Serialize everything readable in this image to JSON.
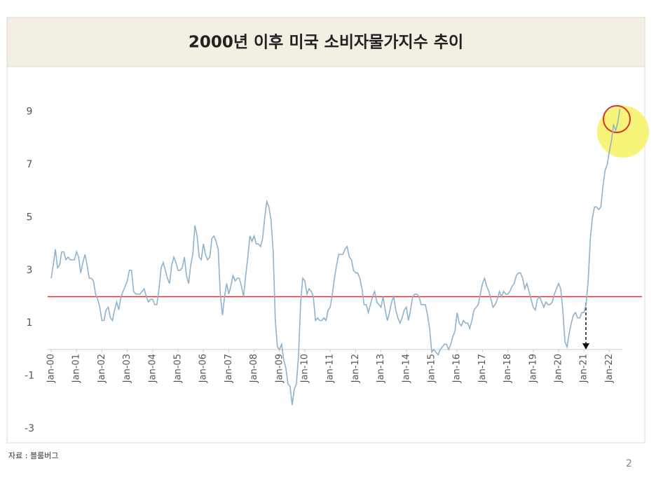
{
  "chart_data": {
    "type": "line",
    "title": "2000년 이후 미국 소비자물가지수 추이",
    "categories": [
      "Jan-00",
      null,
      null,
      null,
      null,
      null,
      null,
      null,
      null,
      null,
      null,
      null,
      "Jan-01",
      null,
      null,
      null,
      null,
      null,
      null,
      null,
      null,
      null,
      null,
      null,
      "Jan-02",
      null,
      null,
      null,
      null,
      null,
      null,
      null,
      null,
      null,
      null,
      null,
      "Jan-03",
      null,
      null,
      null,
      null,
      null,
      null,
      null,
      null,
      null,
      null,
      null,
      "Jan-04",
      null,
      null,
      null,
      null,
      null,
      null,
      null,
      null,
      null,
      null,
      null,
      "Jan-05",
      null,
      null,
      null,
      null,
      null,
      null,
      null,
      null,
      null,
      null,
      null,
      "Jan-06",
      null,
      null,
      null,
      null,
      null,
      null,
      null,
      null,
      null,
      null,
      null,
      "Jan-07",
      null,
      null,
      null,
      null,
      null,
      null,
      null,
      null,
      null,
      null,
      null,
      "Jan-08",
      null,
      null,
      null,
      null,
      null,
      null,
      null,
      null,
      null,
      null,
      null,
      "Jan-09",
      null,
      null,
      null,
      null,
      null,
      null,
      null,
      null,
      null,
      null,
      null,
      "Jan-10",
      null,
      null,
      null,
      null,
      null,
      null,
      null,
      null,
      null,
      null,
      null,
      "Jan-11",
      null,
      null,
      null,
      null,
      null,
      null,
      null,
      null,
      null,
      null,
      null,
      "Jan-12",
      null,
      null,
      null,
      null,
      null,
      null,
      null,
      null,
      null,
      null,
      null,
      "Jan-13",
      null,
      null,
      null,
      null,
      null,
      null,
      null,
      null,
      null,
      null,
      null,
      "Jan-14",
      null,
      null,
      null,
      null,
      null,
      null,
      null,
      null,
      null,
      null,
      null,
      "Jan-15",
      null,
      null,
      null,
      null,
      null,
      null,
      null,
      null,
      null,
      null,
      null,
      "Jan-16",
      null,
      null,
      null,
      null,
      null,
      null,
      null,
      null,
      null,
      null,
      null,
      "Jan-17",
      null,
      null,
      null,
      null,
      null,
      null,
      null,
      null,
      null,
      null,
      null,
      "Jan-18",
      null,
      null,
      null,
      null,
      null,
      null,
      null,
      null,
      null,
      null,
      null,
      "Jan-19",
      null,
      null,
      null,
      null,
      null,
      null,
      null,
      null,
      null,
      null,
      null,
      "Jan-20",
      null,
      null,
      null,
      null,
      null,
      null,
      null,
      null,
      null,
      null,
      null,
      "Jan-21",
      null,
      null,
      null,
      null,
      null,
      null,
      null,
      null,
      null,
      null,
      null,
      "Jan-22",
      null,
      null,
      null,
      null,
      null
    ],
    "values": [
      2.7,
      3.2,
      3.8,
      3.1,
      3.2,
      3.7,
      3.7,
      3.4,
      3.5,
      3.4,
      3.4,
      3.4,
      3.7,
      3.5,
      2.9,
      3.3,
      3.6,
      3.2,
      2.7,
      2.7,
      2.6,
      2.1,
      1.9,
      1.6,
      1.1,
      1.1,
      1.5,
      1.6,
      1.2,
      1.1,
      1.5,
      1.8,
      1.5,
      2.0,
      2.2,
      2.4,
      2.6,
      3.0,
      3.0,
      2.2,
      2.1,
      2.1,
      2.1,
      2.2,
      2.3,
      2.0,
      1.8,
      1.9,
      1.9,
      1.7,
      1.7,
      2.3,
      3.1,
      3.3,
      3.0,
      2.7,
      2.5,
      3.2,
      3.5,
      3.3,
      3.0,
      3.0,
      3.1,
      3.5,
      2.8,
      2.5,
      3.2,
      3.6,
      4.7,
      4.3,
      3.5,
      3.4,
      4.0,
      3.6,
      3.4,
      3.5,
      4.2,
      4.3,
      4.1,
      3.8,
      2.1,
      1.3,
      2.0,
      2.5,
      2.1,
      2.4,
      2.8,
      2.6,
      2.7,
      2.7,
      2.4,
      2.0,
      2.8,
      3.5,
      4.3,
      4.1,
      4.3,
      4.0,
      4.0,
      3.9,
      4.2,
      5.0,
      5.6,
      5.4,
      4.9,
      3.7,
      1.1,
      0.1,
      0.0,
      0.2,
      -0.4,
      -0.7,
      -1.3,
      -1.4,
      -2.1,
      -1.5,
      -1.3,
      -0.2,
      1.8,
      2.7,
      2.6,
      2.1,
      2.3,
      2.2,
      2.0,
      1.1,
      1.2,
      1.1,
      1.1,
      1.2,
      1.1,
      1.5,
      1.6,
      2.1,
      2.7,
      3.2,
      3.6,
      3.6,
      3.6,
      3.8,
      3.9,
      3.5,
      3.4,
      3.0,
      2.9,
      2.9,
      2.7,
      2.3,
      1.7,
      1.7,
      1.4,
      1.7,
      2.0,
      2.2,
      1.8,
      1.7,
      1.6,
      2.0,
      1.5,
      1.1,
      1.4,
      1.8,
      2.0,
      1.5,
      1.2,
      1.0,
      1.2,
      1.5,
      1.6,
      1.1,
      1.5,
      2.0,
      2.1,
      2.1,
      2.0,
      1.7,
      1.7,
      1.7,
      1.3,
      0.8,
      -0.1,
      0.0,
      -0.1,
      -0.2,
      0.0,
      0.1,
      0.2,
      0.2,
      0.0,
      0.2,
      0.5,
      0.7,
      1.4,
      1.0,
      0.9,
      1.1,
      1.0,
      1.0,
      0.8,
      1.1,
      1.5,
      1.6,
      1.7,
      2.1,
      2.5,
      2.7,
      2.4,
      2.2,
      1.9,
      1.6,
      1.7,
      1.9,
      2.2,
      2.0,
      2.2,
      2.1,
      2.1,
      2.2,
      2.4,
      2.5,
      2.8,
      2.9,
      2.9,
      2.7,
      2.3,
      2.5,
      2.2,
      1.9,
      1.6,
      1.5,
      1.9,
      2.0,
      1.8,
      1.6,
      1.8,
      1.7,
      1.7,
      1.8,
      2.1,
      2.3,
      2.5,
      2.3,
      1.5,
      0.3,
      0.1,
      0.6,
      1.0,
      1.3,
      1.4,
      1.2,
      1.2,
      1.4,
      1.4,
      1.7,
      2.6,
      4.2,
      5.0,
      5.4,
      5.4,
      5.3,
      5.4,
      6.2,
      6.8,
      7.0,
      7.5,
      7.9,
      8.5,
      8.3,
      8.6,
      9.1
    ],
    "color": "#8fb3cc",
    "ylim": [
      -3,
      10
    ],
    "yticks": [
      -3,
      -1,
      1,
      3,
      5,
      7,
      9
    ],
    "reference_line": {
      "value": 2,
      "color": "#d9302c"
    },
    "grid": false
  },
  "source": "자료 : 블룸버그",
  "page_number": "2"
}
